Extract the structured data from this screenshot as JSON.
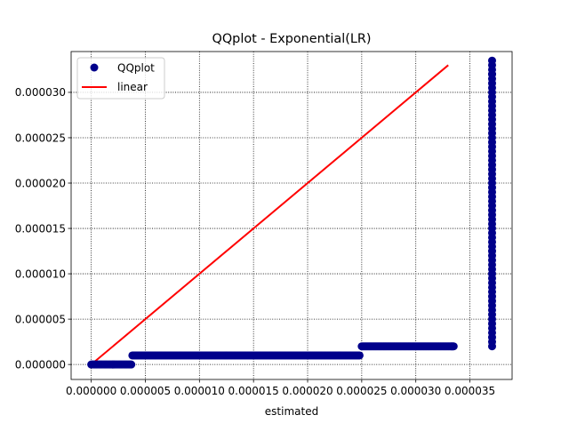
{
  "chart_data": {
    "type": "scatter",
    "title": "QQplot - Exponential(LR)",
    "xlabel": "estimated",
    "ylabel": "",
    "xlim": [
      -1.86e-06,
      3.89e-05
    ],
    "ylim": [
      -1.65e-06,
      3.45e-05
    ],
    "grid": true,
    "legend_position": "top-left",
    "x_ticks": [
      0,
      5e-06,
      1e-05,
      1.5e-05,
      2e-05,
      2.5e-05,
      3e-05,
      3.5e-05
    ],
    "x_tick_labels": [
      "0.000000",
      "0.000005",
      "0.000010",
      "0.000015",
      "0.000020",
      "0.000025",
      "0.000030",
      "0.000035"
    ],
    "y_ticks": [
      0,
      5e-06,
      1e-05,
      1.5e-05,
      2e-05,
      2.5e-05,
      3e-05
    ],
    "y_tick_labels": [
      "0.000000",
      "0.000005",
      "0.000010",
      "0.000015",
      "0.000020",
      "0.000025",
      "0.000030"
    ],
    "series": [
      {
        "name": "QQplot",
        "kind": "scatter",
        "color": "#00008b",
        "segments": [
          {
            "x_start": 0.0,
            "x_end": 3.7e-06,
            "step": 1e-07,
            "y": 0.0
          },
          {
            "x_start": 3.8e-06,
            "x_end": 2.48e-05,
            "step": 1e-07,
            "y": 1e-06
          },
          {
            "x_start": 2.5e-05,
            "x_end": 3.35e-05,
            "step": 1e-07,
            "y": 2e-06
          }
        ],
        "vertical": {
          "x": 3.705e-05,
          "y_start": 2e-06,
          "y_end": 3.3e-05,
          "step": 1e-06,
          "extra_y": [
            3.2e-05
          ]
        }
      },
      {
        "name": "linear",
        "kind": "line",
        "color": "#ff0000",
        "x": [
          0.0,
          3.3e-05
        ],
        "y": [
          0.0,
          3.3e-05
        ]
      }
    ]
  }
}
